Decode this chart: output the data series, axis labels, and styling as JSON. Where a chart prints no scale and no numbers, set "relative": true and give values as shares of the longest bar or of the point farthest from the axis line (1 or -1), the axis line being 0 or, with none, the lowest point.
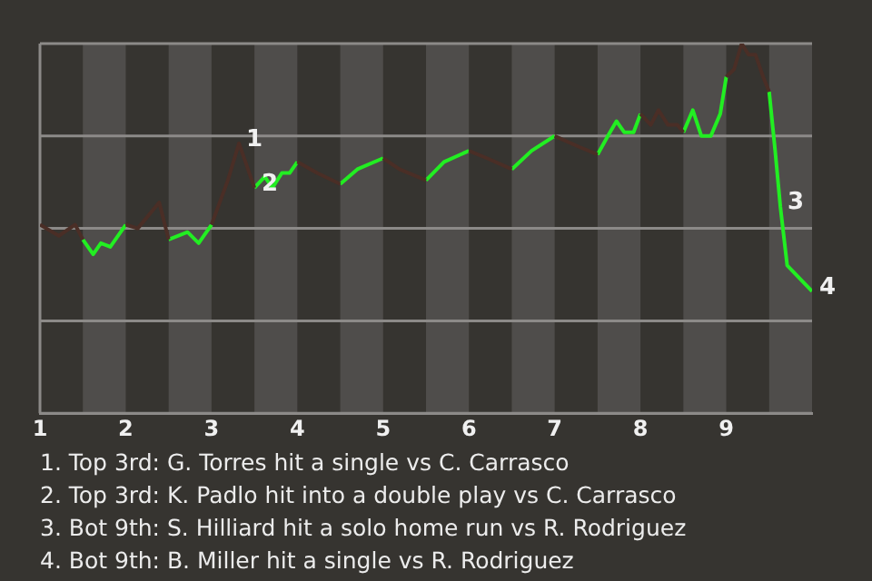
{
  "chart_data": {
    "type": "line",
    "relative": true,
    "x": [
      1,
      1.22,
      1.41,
      1.5,
      1.62,
      1.71,
      1.82,
      2,
      2.14,
      2.39,
      2.5,
      2.72,
      2.85,
      3,
      3.19,
      3.32,
      3.5,
      3.62,
      3.71,
      3.82,
      3.91,
      4,
      4.23,
      4.5,
      4.7,
      5,
      5.19,
      5.5,
      5.71,
      6,
      6.21,
      6.5,
      6.73,
      7,
      7.29,
      7.5,
      7.62,
      7.72,
      7.81,
      7.92,
      8,
      8.12,
      8.21,
      8.32,
      8.43,
      8.5,
      8.61,
      8.71,
      8.82,
      8.93,
      9,
      9.09,
      9.18,
      9.26,
      9.34,
      9.43,
      9.5,
      9.57,
      9.63,
      9.71,
      10
    ],
    "xlim": [
      1,
      10
    ],
    "xticks": [
      1,
      2,
      3,
      4,
      5,
      6,
      7,
      8,
      9
    ],
    "series": [
      {
        "color": "#4a2e26",
        "values": [
          0.51,
          0.48,
          0.51,
          0.47,
          null,
          null,
          null,
          0.51,
          0.5,
          0.57,
          0.47,
          null,
          null,
          0.51,
          0.63,
          0.73,
          0.61,
          null,
          null,
          null,
          null,
          0.68,
          0.65,
          0.62,
          null,
          0.69,
          0.66,
          0.63,
          null,
          0.71,
          0.69,
          0.66,
          null,
          0.75,
          0.72,
          0.7,
          null,
          null,
          null,
          null,
          0.81,
          0.78,
          0.82,
          0.78,
          0.78,
          0.76,
          null,
          null,
          null,
          null,
          0.91,
          0.93,
          1,
          0.97,
          0.97,
          0.91,
          0.87,
          null,
          null,
          null,
          null
        ]
      },
      {
        "color": "#22ee22",
        "values": [
          null,
          null,
          null,
          0.47,
          0.43,
          0.46,
          0.45,
          0.51,
          null,
          null,
          0.47,
          0.49,
          0.46,
          0.51,
          null,
          null,
          0.61,
          0.64,
          0.61,
          0.65,
          0.65,
          0.68,
          null,
          0.62,
          0.66,
          0.69,
          null,
          0.63,
          0.68,
          0.71,
          null,
          0.66,
          0.71,
          0.75,
          null,
          0.7,
          0.75,
          0.79,
          0.76,
          0.76,
          0.81,
          null,
          null,
          null,
          null,
          0.76,
          0.82,
          0.75,
          0.75,
          0.81,
          0.91,
          null,
          null,
          null,
          null,
          null,
          0.87,
          0.71,
          0.56,
          0.4,
          0.33
        ]
      }
    ],
    "bands": [
      {
        "axis": "x",
        "from": 1.5,
        "to": 2,
        "color": "#4f4d4b"
      },
      {
        "axis": "x",
        "from": 2.5,
        "to": 3,
        "color": "#4f4d4b"
      },
      {
        "axis": "x",
        "from": 3.5,
        "to": 4,
        "color": "#4f4d4b"
      },
      {
        "axis": "x",
        "from": 4.5,
        "to": 5,
        "color": "#4f4d4b"
      },
      {
        "axis": "x",
        "from": 5.5,
        "to": 6,
        "color": "#4f4d4b"
      },
      {
        "axis": "x",
        "from": 6.5,
        "to": 7,
        "color": "#4f4d4b"
      },
      {
        "axis": "x",
        "from": 7.5,
        "to": 8,
        "color": "#4f4d4b"
      },
      {
        "axis": "x",
        "from": 8.5,
        "to": 9,
        "color": "#4f4d4b"
      },
      {
        "axis": "x",
        "from": 9.5,
        "to": 10,
        "color": "#4f4d4b"
      }
    ],
    "annotations": [
      {
        "text": "1",
        "x": 3.32,
        "y": 0.73
      },
      {
        "text": "2",
        "x": 3.5,
        "y": 0.61
      },
      {
        "text": "3",
        "x": 9.63,
        "y": 0.56
      },
      {
        "text": "4",
        "x": 10,
        "y": 0.33
      },
      "1. Top 3rd: G. Torres hit a single vs C. Carrasco",
      "2. Top 3rd: K. Padlo hit into a double play vs C. Carrasco",
      "3. Bot 9th: S. Hilliard hit a solo home run vs R. Rodriguez",
      "4. Bot 9th: B. Miller hit a single vs R. Rodriguez"
    ],
    "grid": "y",
    "legend": false,
    "marker": "none",
    "line_style": "solid"
  }
}
